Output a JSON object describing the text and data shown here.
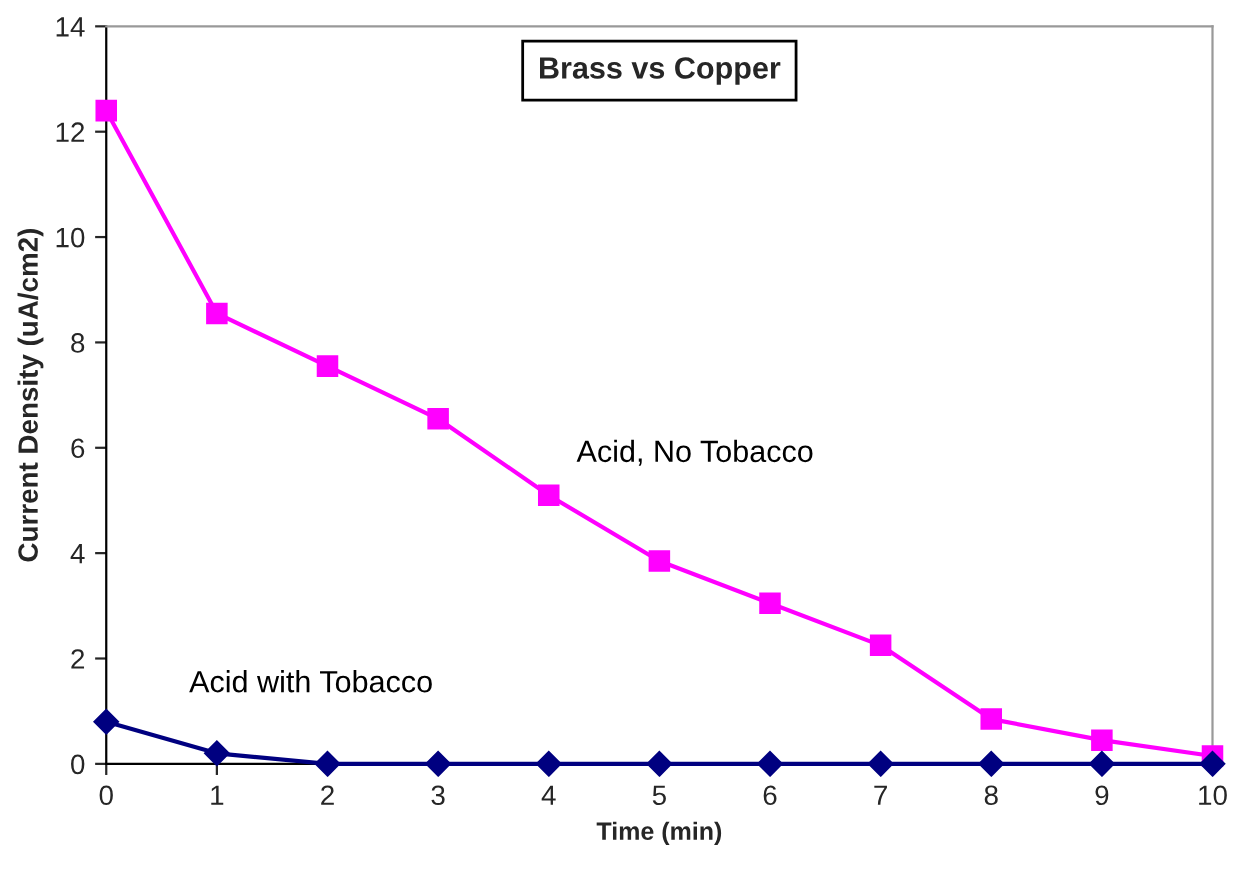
{
  "chart_data": {
    "type": "line",
    "title": "Brass vs Copper",
    "xlabel": "Time (min)",
    "ylabel": "Current Density (uA/cm2)",
    "x": [
      0,
      1,
      2,
      3,
      4,
      5,
      6,
      7,
      8,
      9,
      10
    ],
    "series": [
      {
        "name": "Acid, No Tobacco",
        "color": "#ff00ff",
        "marker": "square",
        "values": [
          12.4,
          8.55,
          7.55,
          6.55,
          5.1,
          3.85,
          3.05,
          2.25,
          0.85,
          0.45,
          0.15
        ]
      },
      {
        "name": "Acid with Tobacco",
        "color": "#000080",
        "marker": "diamond",
        "values": [
          0.8,
          0.2,
          0,
          0,
          0,
          0,
          0,
          0,
          0,
          0,
          0
        ]
      }
    ],
    "xlim": [
      0,
      10
    ],
    "xticks": [
      0,
      1,
      2,
      3,
      4,
      5,
      6,
      7,
      8,
      9,
      10
    ],
    "ylim": [
      0,
      14
    ],
    "yticks": [
      0,
      2,
      4,
      6,
      8,
      10,
      12,
      14
    ],
    "grid": false,
    "legend": false,
    "line_style": "solid"
  }
}
